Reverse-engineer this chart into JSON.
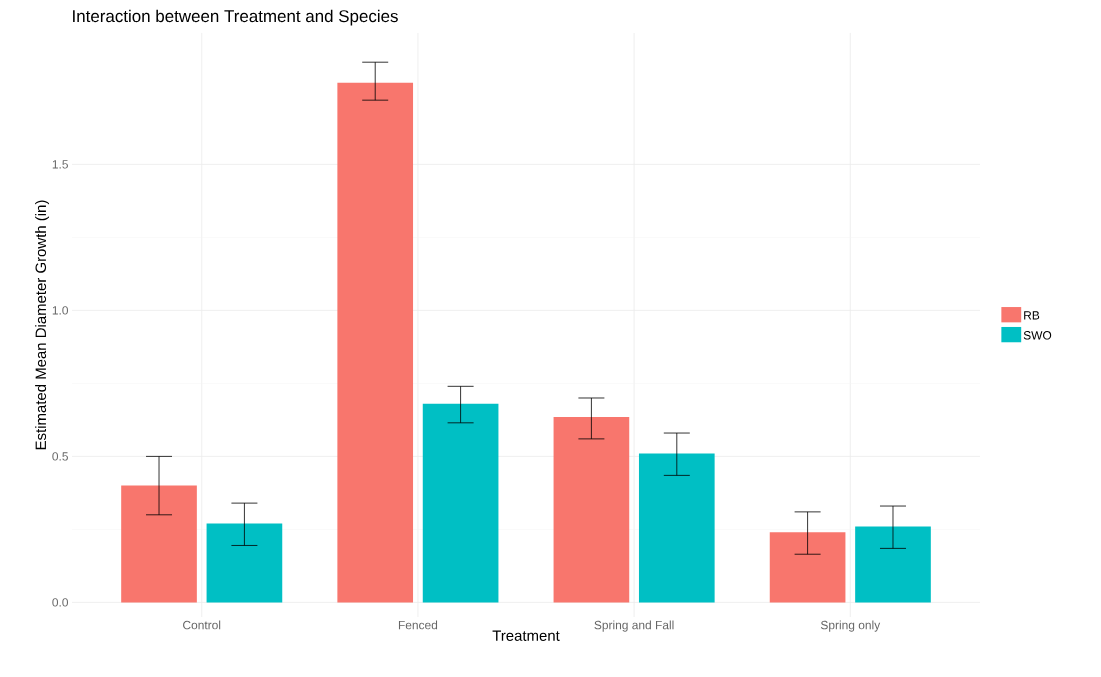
{
  "chart_data": {
    "type": "bar",
    "title": "Interaction between Treatment and Species",
    "xlabel": "Treatment",
    "ylabel": "Estimated Mean Diameter Growth (in)",
    "categories": [
      "Control",
      "Fenced",
      "Spring and Fall",
      "Spring only"
    ],
    "series": [
      {
        "name": "RB",
        "color": "#f8766d",
        "values": [
          0.4,
          1.78,
          0.635,
          0.24
        ],
        "errors": [
          [
            0.3,
            0.5
          ],
          [
            1.72,
            1.85
          ],
          [
            0.56,
            0.7
          ],
          [
            0.165,
            0.31
          ]
        ]
      },
      {
        "name": "SWO",
        "color": "#00bfc4",
        "values": [
          0.27,
          0.68,
          0.51,
          0.26
        ],
        "errors": [
          [
            0.195,
            0.34
          ],
          [
            0.615,
            0.74
          ],
          [
            0.435,
            0.58
          ],
          [
            0.185,
            0.33
          ]
        ]
      }
    ],
    "ylim": [
      -0.05,
      1.95
    ],
    "yticks": [
      {
        "value": 0,
        "label": "0.0"
      },
      0.5,
      {
        "value": 1,
        "label": "1.0"
      },
      1.5
    ],
    "grid": true,
    "legend": "right"
  }
}
